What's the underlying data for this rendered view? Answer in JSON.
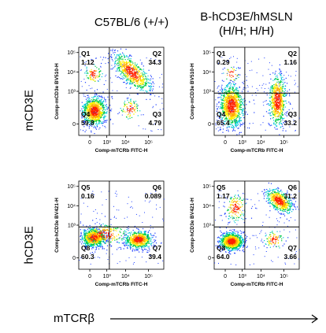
{
  "columns": [
    "C57BL/6 (+/+)",
    "B-hCD3E/hMSLN\n(H/H; H/H)"
  ],
  "rows": [
    "mCD3E",
    "hCD3E"
  ],
  "x_axis_label": "mTCRβ",
  "chart_data": [
    {
      "type": "scatter",
      "id": "p1",
      "xlabel": "Comp-mTCRb FITC-H",
      "ylabel": "Comp-mCD3e BV510-H",
      "quadrants": [
        {
          "name": "Q1",
          "value": "1.12"
        },
        {
          "name": "Q2",
          "value": "34.3"
        },
        {
          "name": "Q3",
          "value": "4.79"
        },
        {
          "name": "Q4",
          "value": "59.8"
        }
      ]
    },
    {
      "type": "scatter",
      "id": "p2",
      "xlabel": "Comp-mTCRb FITC-H",
      "ylabel": "Comp-mCD3e BV510-H",
      "quadrants": [
        {
          "name": "Q1",
          "value": "0.29"
        },
        {
          "name": "Q2",
          "value": "1.16"
        },
        {
          "name": "Q3",
          "value": "33.2"
        },
        {
          "name": "Q4",
          "value": "65.4"
        }
      ]
    },
    {
      "type": "scatter",
      "id": "p3",
      "xlabel": "Comp-mTCRb FITC-H",
      "ylabel": "Comp-hCD3e BV421-H",
      "quadrants": [
        {
          "name": "Q5",
          "value": "0.16"
        },
        {
          "name": "Q6",
          "value": "0.089"
        },
        {
          "name": "Q7",
          "value": "39.4"
        },
        {
          "name": "Q8",
          "value": "60.3"
        }
      ]
    },
    {
      "type": "scatter",
      "id": "p4",
      "xlabel": "Comp-mTCRb FITC-H",
      "ylabel": "Comp-hCD3e BV421-H",
      "quadrants": [
        {
          "name": "Q5",
          "value": "1.17"
        },
        {
          "name": "Q6",
          "value": "31.2"
        },
        {
          "name": "Q7",
          "value": "3.66"
        },
        {
          "name": "Q8",
          "value": "64.0"
        }
      ]
    }
  ],
  "x_ticks": [
    "0",
    "10³",
    "10⁴",
    "10⁵"
  ],
  "y_ticks": [
    "10⁵",
    "10⁴",
    "10³",
    "0"
  ],
  "colors": {
    "dense": "#ff2000",
    "mid": "#00cc44",
    "sparse": "#1a3cff"
  }
}
